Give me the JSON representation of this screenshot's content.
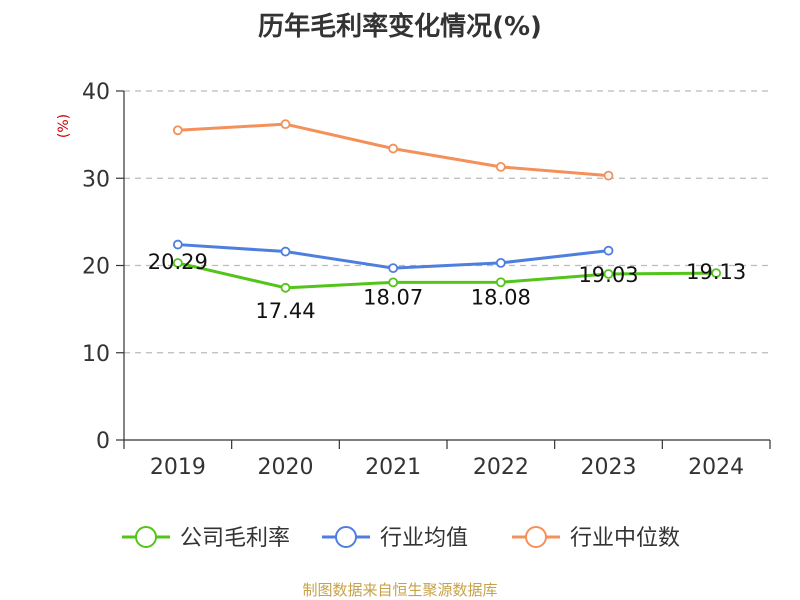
{
  "chart_data": {
    "type": "line",
    "title": "历年毛利率变化情况(%)",
    "ylabel": "(%)",
    "xlabel": "",
    "categories": [
      "2019",
      "2020",
      "2021",
      "2022",
      "2023",
      "2024"
    ],
    "ylim": [
      0,
      40
    ],
    "yticks": [
      0,
      10,
      20,
      30,
      40
    ],
    "grid": true,
    "legend_position": "bottom",
    "series": [
      {
        "name": "公司毛利率",
        "color": "#52c41a",
        "values": [
          20.29,
          17.44,
          18.07,
          18.08,
          19.03,
          19.13
        ],
        "labels": [
          "20.29",
          "17.44",
          "18.07",
          "18.08",
          "19.03",
          "19.13"
        ]
      },
      {
        "name": "行业均值",
        "color": "#4e7fde",
        "values": [
          22.4,
          21.6,
          19.7,
          20.3,
          21.7,
          null
        ]
      },
      {
        "name": "行业中位数",
        "color": "#f4905a",
        "values": [
          35.5,
          36.2,
          33.4,
          31.3,
          30.3,
          null
        ]
      }
    ]
  },
  "source": {
    "text": "制图数据来自恒生聚源数据库",
    "color": "#c7a24a"
  },
  "axis_label_color": "#cc0000"
}
